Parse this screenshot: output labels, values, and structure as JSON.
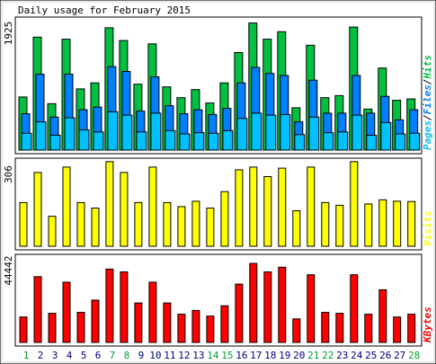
{
  "colors": {
    "hits": "#00c040",
    "files": "#0080ff",
    "pages": "#00c0ff",
    "visits": "#ffff00",
    "kbytes": "#ff0000",
    "weekday_label": "#000080",
    "weekend_label": "#00a030",
    "border": "#000000",
    "panel_background": "#ffffff",
    "outer_background": "#e8e8e8"
  },
  "chart_data": {
    "type": "bar",
    "title": "Daily usage for February 2015",
    "categories": [
      "1",
      "2",
      "3",
      "4",
      "5",
      "6",
      "7",
      "8",
      "9",
      "10",
      "11",
      "12",
      "13",
      "14",
      "15",
      "16",
      "17",
      "18",
      "19",
      "20",
      "21",
      "22",
      "23",
      "24",
      "25",
      "26",
      "27",
      "28"
    ],
    "weekend_days": [
      "1",
      "7",
      "8",
      "14",
      "15",
      "21",
      "22",
      "28"
    ],
    "panels": [
      {
        "name": "hits-files-pages",
        "ymax_label": "1925",
        "ylim": [
          0,
          1925
        ],
        "legend": {
          "pages": "Pages",
          "sep1": "/",
          "files": "Files",
          "sep2": "/",
          "hits": "Hits"
        },
        "series": [
          {
            "name": "Hits",
            "key": "hits",
            "values": [
              790,
              1680,
              690,
              1650,
              910,
              1000,
              1820,
              1630,
              980,
              1580,
              940,
              780,
              900,
              700,
              1000,
              1450,
              1890,
              1650,
              1760,
              630,
              1560,
              780,
              810,
              1830,
              610,
              1220,
              740,
              760
            ]
          },
          {
            "name": "Files",
            "key": "files",
            "values": [
              540,
              1130,
              490,
              1130,
              600,
              640,
              1240,
              1170,
              580,
              1090,
              660,
              540,
              600,
              530,
              620,
              1000,
              1230,
              1140,
              1110,
              420,
              1040,
              550,
              550,
              1110,
              550,
              800,
              450,
              600
            ]
          },
          {
            "name": "Pages",
            "key": "pages",
            "values": [
              250,
              420,
              220,
              480,
              300,
              270,
              570,
              520,
              270,
              550,
              290,
              240,
              260,
              250,
              290,
              470,
              550,
              520,
              530,
              230,
              490,
              260,
              270,
              520,
              220,
              410,
              240,
              250
            ]
          }
        ]
      },
      {
        "name": "visits",
        "ymax_label": "306",
        "ylim": [
          0,
          306
        ],
        "legend": {
          "visits": "Visits"
        },
        "series": [
          {
            "name": "Visits",
            "key": "visits",
            "values": [
              160,
              270,
              110,
              290,
              160,
              140,
              310,
              270,
              160,
              290,
              160,
              145,
              165,
              140,
              200,
              280,
              290,
              255,
              286,
              130,
              290,
              160,
              150,
              310,
              155,
              170,
              165,
              164
            ]
          }
        ]
      },
      {
        "name": "kbytes",
        "ymax_label": "44442",
        "ylim": [
          0,
          44442
        ],
        "legend": {
          "kbytes": "KBytes"
        },
        "series": [
          {
            "name": "KBytes",
            "key": "kbytes",
            "values": [
              13500,
              35000,
              15500,
              32000,
              16000,
              22500,
              39000,
              37500,
              21000,
              32000,
              21000,
              15000,
              17000,
              14000,
              19500,
              31000,
              42000,
              37500,
              40000,
              12500,
              36000,
              16000,
              15500,
              36000,
              15000,
              28000,
              13500,
              15000
            ]
          }
        ]
      }
    ]
  }
}
